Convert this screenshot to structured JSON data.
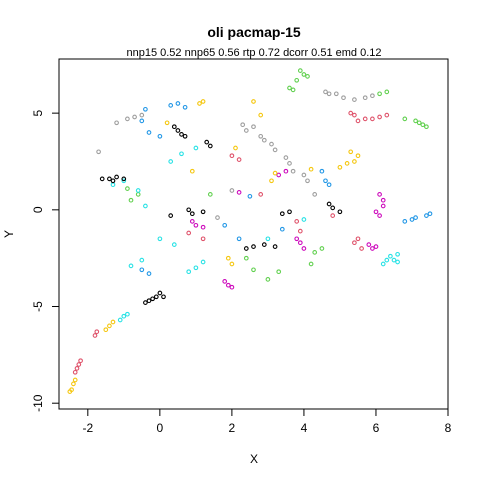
{
  "chart_data": {
    "type": "scatter",
    "title": "oli pacmap-15",
    "subtitle": "nnp15 0.52 nnp65 0.56 rtp 0.72 dcorr 0.51 emd 0.12",
    "xlabel": "X",
    "ylabel": "Y",
    "xlim": [
      -2.8,
      8.0
    ],
    "ylim": [
      -10.3,
      7.8
    ],
    "xticks": [
      -2,
      0,
      2,
      4,
      6,
      8
    ],
    "yticks": [
      -10,
      -5,
      0,
      5
    ],
    "grid": false,
    "legend": "none",
    "marker": "open-circle",
    "series": [
      {
        "color": "#DF536B",
        "points": [
          [
            -2.2,
            -7.8
          ],
          [
            -2.25,
            -8.0
          ],
          [
            -2.3,
            -8.2
          ],
          [
            -2.35,
            -8.4
          ],
          [
            -1.8,
            -6.5
          ],
          [
            -1.75,
            -6.3
          ],
          [
            0.8,
            -1.2
          ],
          [
            1.2,
            -1.5
          ],
          [
            2.8,
            0.8
          ],
          [
            3.8,
            -0.6
          ],
          [
            3.9,
            -1.1
          ],
          [
            5.4,
            -1.7
          ],
          [
            5.5,
            -1.5
          ],
          [
            5.6,
            -2.0
          ],
          [
            5.3,
            5.0
          ],
          [
            5.4,
            4.9
          ],
          [
            5.5,
            4.6
          ],
          [
            5.7,
            4.7
          ],
          [
            5.9,
            4.7
          ],
          [
            6.1,
            4.8
          ],
          [
            6.3,
            4.9
          ],
          [
            2.0,
            2.8
          ],
          [
            2.2,
            2.6
          ],
          [
            4.8,
            -0.3
          ]
        ]
      },
      {
        "color": "#61D04F",
        "points": [
          [
            3.9,
            7.2
          ],
          [
            4.0,
            7.0
          ],
          [
            4.1,
            6.9
          ],
          [
            3.8,
            6.7
          ],
          [
            3.6,
            6.3
          ],
          [
            3.7,
            6.2
          ],
          [
            7.2,
            4.5
          ],
          [
            7.3,
            4.4
          ],
          [
            7.4,
            4.3
          ],
          [
            7.1,
            4.6
          ],
          [
            6.8,
            4.7
          ],
          [
            6.3,
            6.1
          ],
          [
            6.1,
            6.0
          ],
          [
            1.4,
            0.8
          ],
          [
            2.4,
            -2.5
          ],
          [
            2.6,
            -3.1
          ],
          [
            3.0,
            -3.6
          ],
          [
            3.3,
            -3.2
          ],
          [
            4.2,
            -2.8
          ],
          [
            4.3,
            -2.2
          ],
          [
            4.5,
            -2.0
          ],
          [
            -0.8,
            0.5
          ],
          [
            -0.6,
            0.8
          ],
          [
            -0.9,
            1.1
          ]
        ]
      },
      {
        "color": "#2297E6",
        "points": [
          [
            7.0,
            -0.5
          ],
          [
            7.1,
            -0.4
          ],
          [
            7.4,
            -0.3
          ],
          [
            7.5,
            -0.2
          ],
          [
            6.8,
            -0.6
          ],
          [
            0.3,
            5.4
          ],
          [
            0.5,
            5.5
          ],
          [
            0.7,
            5.3
          ],
          [
            -0.4,
            5.2
          ],
          [
            -0.5,
            4.6
          ],
          [
            0.0,
            3.8
          ],
          [
            -0.3,
            4.0
          ],
          [
            2.5,
            0.7
          ],
          [
            4.5,
            2.0
          ],
          [
            4.6,
            1.5
          ],
          [
            4.7,
            1.3
          ],
          [
            1.8,
            -0.8
          ],
          [
            2.2,
            -1.5
          ],
          [
            3.4,
            -1.0
          ],
          [
            -0.5,
            -3.1
          ],
          [
            -0.3,
            -3.3
          ]
        ]
      },
      {
        "color": "#28E2E5",
        "points": [
          [
            6.4,
            -2.4
          ],
          [
            6.5,
            -2.6
          ],
          [
            6.6,
            -2.7
          ],
          [
            6.3,
            -2.6
          ],
          [
            6.2,
            -2.8
          ],
          [
            6.6,
            -2.3
          ],
          [
            -1.0,
            -5.5
          ],
          [
            -1.1,
            -5.7
          ],
          [
            -0.9,
            -5.4
          ],
          [
            -0.8,
            -2.9
          ],
          [
            -0.5,
            -2.6
          ],
          [
            0.0,
            -1.5
          ],
          [
            0.4,
            -1.8
          ],
          [
            0.8,
            -3.2
          ],
          [
            1.0,
            -3.0
          ],
          [
            1.2,
            -2.7
          ],
          [
            0.3,
            2.5
          ],
          [
            0.6,
            2.9
          ],
          [
            1.0,
            3.2
          ],
          [
            -1.3,
            1.3
          ],
          [
            -1.0,
            1.5
          ],
          [
            -0.6,
            1.0
          ],
          [
            -0.4,
            0.2
          ],
          [
            3.0,
            -1.5
          ],
          [
            4.0,
            -0.5
          ]
        ]
      },
      {
        "color": "#CD0BBC",
        "points": [
          [
            6.1,
            0.8
          ],
          [
            6.2,
            0.5
          ],
          [
            6.2,
            0.2
          ],
          [
            6.0,
            -0.1
          ],
          [
            6.1,
            -0.3
          ],
          [
            5.8,
            -1.8
          ],
          [
            5.9,
            -2.0
          ],
          [
            6.0,
            -1.9
          ],
          [
            1.9,
            -3.9
          ],
          [
            2.0,
            -4.0
          ],
          [
            1.8,
            -3.7
          ],
          [
            3.8,
            -1.5
          ],
          [
            3.9,
            -1.7
          ],
          [
            4.0,
            -2.0
          ],
          [
            2.2,
            0.9
          ],
          [
            3.3,
            1.8
          ],
          [
            3.5,
            2.0
          ],
          [
            0.9,
            -0.6
          ],
          [
            1.0,
            -0.8
          ],
          [
            1.2,
            -0.9
          ]
        ]
      },
      {
        "color": "#F5C710",
        "points": [
          [
            -2.4,
            -9.0
          ],
          [
            -2.45,
            -9.3
          ],
          [
            -2.5,
            -9.4
          ],
          [
            -2.35,
            -8.8
          ],
          [
            -1.4,
            -6.0
          ],
          [
            -1.3,
            -5.8
          ],
          [
            -1.5,
            -6.2
          ],
          [
            5.4,
            2.5
          ],
          [
            5.5,
            2.8
          ],
          [
            5.3,
            3.0
          ],
          [
            5.2,
            2.4
          ],
          [
            5.0,
            2.2
          ],
          [
            1.2,
            5.6
          ],
          [
            1.1,
            5.5
          ],
          [
            0.2,
            4.5
          ],
          [
            2.6,
            5.6
          ],
          [
            2.8,
            4.9
          ],
          [
            0.9,
            2.0
          ],
          [
            1.9,
            -2.5
          ],
          [
            2.0,
            -2.8
          ],
          [
            2.1,
            3.2
          ],
          [
            3.2,
            1.9
          ],
          [
            3.1,
            1.5
          ],
          [
            4.2,
            2.1
          ]
        ]
      },
      {
        "color": "#9E9E9E",
        "points": [
          [
            -1.7,
            3.0
          ],
          [
            -0.9,
            4.7
          ],
          [
            -0.7,
            4.8
          ],
          [
            -0.5,
            4.9
          ],
          [
            -1.2,
            4.5
          ],
          [
            2.3,
            4.4
          ],
          [
            2.4,
            4.1
          ],
          [
            2.6,
            4.3
          ],
          [
            2.8,
            3.8
          ],
          [
            2.9,
            3.6
          ],
          [
            3.1,
            3.4
          ],
          [
            3.2,
            3.1
          ],
          [
            3.5,
            2.7
          ],
          [
            3.6,
            2.4
          ],
          [
            3.7,
            2.0
          ],
          [
            4.0,
            1.8
          ],
          [
            4.1,
            1.5
          ],
          [
            4.3,
            0.8
          ],
          [
            4.6,
            6.1
          ],
          [
            4.7,
            6.0
          ],
          [
            4.9,
            6.0
          ],
          [
            5.1,
            5.8
          ],
          [
            5.4,
            5.7
          ],
          [
            5.7,
            5.8
          ],
          [
            5.9,
            5.9
          ],
          [
            2.0,
            1.0
          ],
          [
            1.6,
            -0.4
          ]
        ]
      },
      {
        "color": "#000000",
        "points": [
          [
            -1.6,
            1.6
          ],
          [
            -1.4,
            1.6
          ],
          [
            -1.2,
            1.7
          ],
          [
            -1.0,
            1.6
          ],
          [
            -1.3,
            1.5
          ],
          [
            -0.4,
            -4.8
          ],
          [
            -0.3,
            -4.7
          ],
          [
            -0.1,
            -4.5
          ],
          [
            0.0,
            -4.3
          ],
          [
            0.1,
            -4.5
          ],
          [
            -0.2,
            -4.6
          ],
          [
            0.4,
            4.3
          ],
          [
            0.5,
            4.1
          ],
          [
            0.6,
            3.9
          ],
          [
            0.7,
            3.8
          ],
          [
            1.3,
            3.5
          ],
          [
            1.4,
            3.3
          ],
          [
            0.8,
            0.0
          ],
          [
            0.9,
            -0.2
          ],
          [
            1.2,
            -0.1
          ],
          [
            2.4,
            -2.0
          ],
          [
            2.6,
            -1.9
          ],
          [
            2.9,
            -1.8
          ],
          [
            3.2,
            -1.9
          ],
          [
            3.4,
            -0.2
          ],
          [
            3.6,
            -0.1
          ],
          [
            4.7,
            0.3
          ],
          [
            4.8,
            0.1
          ],
          [
            5.0,
            -0.1
          ],
          [
            0.3,
            -0.3
          ]
        ]
      }
    ]
  }
}
